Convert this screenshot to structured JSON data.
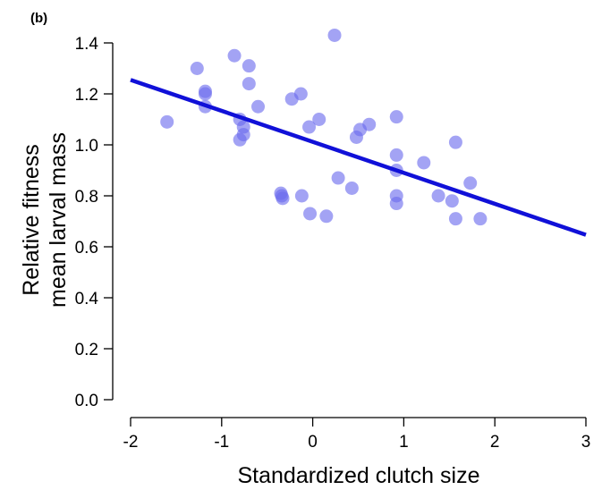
{
  "chart_data": {
    "type": "scatter",
    "panel_label": "(b)",
    "xlabel": "Standardized clutch size",
    "ylabel_lines": [
      "Relative fitness",
      "mean larval mass"
    ],
    "xlim": [
      -2,
      3
    ],
    "ylim": [
      0,
      1.4
    ],
    "x_ticks": [
      -2,
      -1,
      0,
      1,
      2,
      3
    ],
    "x_tick_labels": [
      "-2",
      "-1",
      "0",
      "1",
      "2",
      "3"
    ],
    "y_ticks": [
      0,
      0.2,
      0.4,
      0.6,
      0.8,
      1.0,
      1.2,
      1.4
    ],
    "y_tick_labels": [
      "0.0",
      "0.2",
      "0.4",
      "0.6",
      "0.8",
      "1.0",
      "1.2",
      "1.4"
    ],
    "grid": false,
    "point_color": "#6a6aee",
    "point_opacity": 0.62,
    "line_color": "#1010d8",
    "points": [
      {
        "x": -1.6,
        "y": 1.09
      },
      {
        "x": -1.27,
        "y": 1.3
      },
      {
        "x": -1.18,
        "y": 1.21
      },
      {
        "x": -1.18,
        "y": 1.2
      },
      {
        "x": -1.18,
        "y": 1.15
      },
      {
        "x": -0.86,
        "y": 1.35
      },
      {
        "x": -0.8,
        "y": 1.1
      },
      {
        "x": -0.8,
        "y": 1.02
      },
      {
        "x": -0.76,
        "y": 1.07
      },
      {
        "x": -0.76,
        "y": 1.04
      },
      {
        "x": -0.7,
        "y": 1.31
      },
      {
        "x": -0.7,
        "y": 1.24
      },
      {
        "x": -0.6,
        "y": 1.15
      },
      {
        "x": -0.35,
        "y": 0.81
      },
      {
        "x": -0.34,
        "y": 0.8
      },
      {
        "x": -0.33,
        "y": 0.79
      },
      {
        "x": -0.23,
        "y": 1.18
      },
      {
        "x": -0.13,
        "y": 1.2
      },
      {
        "x": -0.12,
        "y": 0.8
      },
      {
        "x": -0.04,
        "y": 1.07
      },
      {
        "x": -0.03,
        "y": 0.73
      },
      {
        "x": 0.07,
        "y": 1.1
      },
      {
        "x": 0.15,
        "y": 0.72
      },
      {
        "x": 0.24,
        "y": 1.43
      },
      {
        "x": 0.28,
        "y": 0.87
      },
      {
        "x": 0.43,
        "y": 0.83
      },
      {
        "x": 0.48,
        "y": 1.03
      },
      {
        "x": 0.52,
        "y": 1.06
      },
      {
        "x": 0.62,
        "y": 1.08
      },
      {
        "x": 0.92,
        "y": 1.11
      },
      {
        "x": 0.92,
        "y": 0.96
      },
      {
        "x": 0.92,
        "y": 0.9
      },
      {
        "x": 0.92,
        "y": 0.8
      },
      {
        "x": 0.92,
        "y": 0.77
      },
      {
        "x": 1.22,
        "y": 0.93
      },
      {
        "x": 1.38,
        "y": 0.8
      },
      {
        "x": 1.53,
        "y": 0.78
      },
      {
        "x": 1.57,
        "y": 1.01
      },
      {
        "x": 1.57,
        "y": 0.71
      },
      {
        "x": 1.73,
        "y": 0.85
      },
      {
        "x": 1.84,
        "y": 0.71
      }
    ],
    "fit_line": {
      "x": [
        -2,
        3
      ],
      "y": [
        1.255,
        0.647
      ]
    }
  }
}
